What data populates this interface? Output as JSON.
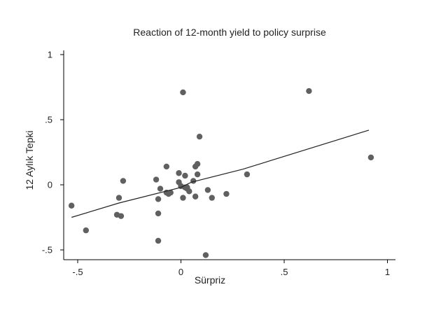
{
  "chart_data": {
    "type": "scatter",
    "title": "Reaction of 12-month yield to policy surprise",
    "xlabel": "Sürpriz",
    "ylabel": "12 Aylık Tepki",
    "xlim": [
      -0.55,
      1.03
    ],
    "ylim": [
      -0.57,
      1.03
    ],
    "x_ticks": [
      {
        "value": -0.5,
        "label": "-.5"
      },
      {
        "value": 0,
        "label": "0"
      },
      {
        "value": 0.5,
        "label": ".5"
      },
      {
        "value": 1,
        "label": "1"
      }
    ],
    "y_ticks": [
      {
        "value": -0.5,
        "label": "-.5"
      },
      {
        "value": 0,
        "label": "0"
      },
      {
        "value": 0.5,
        "label": ".5"
      },
      {
        "value": 1,
        "label": "1"
      }
    ],
    "grid": false,
    "legend": "none",
    "marker_color": "#606060",
    "line_color": "#222222",
    "points": [
      {
        "x": -0.53,
        "y": -0.16
      },
      {
        "x": -0.46,
        "y": -0.35
      },
      {
        "x": -0.31,
        "y": -0.23
      },
      {
        "x": -0.3,
        "y": -0.1
      },
      {
        "x": -0.29,
        "y": -0.24
      },
      {
        "x": -0.28,
        "y": 0.03
      },
      {
        "x": -0.12,
        "y": 0.04
      },
      {
        "x": -0.11,
        "y": -0.22
      },
      {
        "x": -0.11,
        "y": -0.43
      },
      {
        "x": -0.11,
        "y": -0.11
      },
      {
        "x": -0.1,
        "y": -0.03
      },
      {
        "x": -0.07,
        "y": 0.14
      },
      {
        "x": -0.07,
        "y": -0.06
      },
      {
        "x": -0.06,
        "y": -0.07
      },
      {
        "x": -0.05,
        "y": -0.06
      },
      {
        "x": -0.01,
        "y": 0.09
      },
      {
        "x": -0.01,
        "y": 0.02
      },
      {
        "x": 0.0,
        "y": -0.01
      },
      {
        "x": 0.01,
        "y": -0.1
      },
      {
        "x": 0.01,
        "y": 0.71
      },
      {
        "x": 0.02,
        "y": -0.02
      },
      {
        "x": 0.02,
        "y": 0.07
      },
      {
        "x": 0.03,
        "y": -0.03
      },
      {
        "x": 0.03,
        "y": -0.02
      },
      {
        "x": 0.04,
        "y": -0.05
      },
      {
        "x": 0.06,
        "y": 0.03
      },
      {
        "x": 0.07,
        "y": -0.09
      },
      {
        "x": 0.07,
        "y": 0.14
      },
      {
        "x": 0.08,
        "y": 0.08
      },
      {
        "x": 0.08,
        "y": 0.16
      },
      {
        "x": 0.09,
        "y": 0.37
      },
      {
        "x": 0.12,
        "y": -0.54
      },
      {
        "x": 0.13,
        "y": -0.04
      },
      {
        "x": 0.15,
        "y": -0.1
      },
      {
        "x": 0.22,
        "y": -0.07
      },
      {
        "x": 0.32,
        "y": 0.08
      },
      {
        "x": 0.62,
        "y": 0.72
      },
      {
        "x": 0.92,
        "y": 0.21
      }
    ],
    "fit_line": [
      {
        "x": -0.53,
        "y": -0.25
      },
      {
        "x": -0.3,
        "y": -0.14
      },
      {
        "x": 0.0,
        "y": -0.02
      },
      {
        "x": 0.05,
        "y": 0.02
      },
      {
        "x": 0.3,
        "y": 0.12
      },
      {
        "x": 0.91,
        "y": 0.42
      }
    ]
  }
}
